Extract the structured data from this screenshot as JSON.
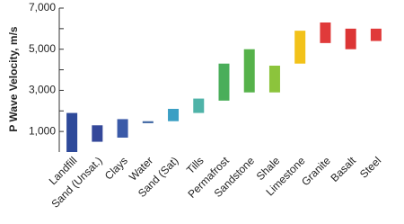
{
  "chart_data": {
    "type": "floating-bar",
    "y_label": "P Wave Velocity, m/s",
    "categories": [
      "Landfill",
      "Sand (Unsat.)",
      "Clays",
      "Water",
      "Sand (Sat)",
      "Tills",
      "Permafrost",
      "Sandstone",
      "Shale",
      "Limestone",
      "Granite",
      "Basalt",
      "Steel"
    ],
    "low": [
      0,
      500,
      700,
      1400,
      1500,
      1900,
      2500,
      2900,
      2900,
      4300,
      5300,
      5000,
      5400
    ],
    "high": [
      1900,
      1300,
      1600,
      1500,
      2100,
      2600,
      4300,
      5000,
      4200,
      5900,
      6300,
      6000,
      6000
    ],
    "colors": [
      "#2e4a9a",
      "#34489a",
      "#3a5aa8",
      "#4a6fa8",
      "#3b9fc4",
      "#4fb3a8",
      "#4aae5a",
      "#56b24a",
      "#8cc43c",
      "#f2c21a",
      "#e03a3a",
      "#dc3535",
      "#e03a3a"
    ],
    "ylim": [
      0,
      7000
    ],
    "yticks": [
      {
        "value": 1000,
        "label": "1,000"
      },
      {
        "value": 3000,
        "label": "3,000"
      },
      {
        "value": 5000,
        "label": "5,000"
      },
      {
        "value": 7000,
        "label": "7,000"
      }
    ],
    "minor_yticks": [
      2000,
      4000,
      6000
    ]
  }
}
